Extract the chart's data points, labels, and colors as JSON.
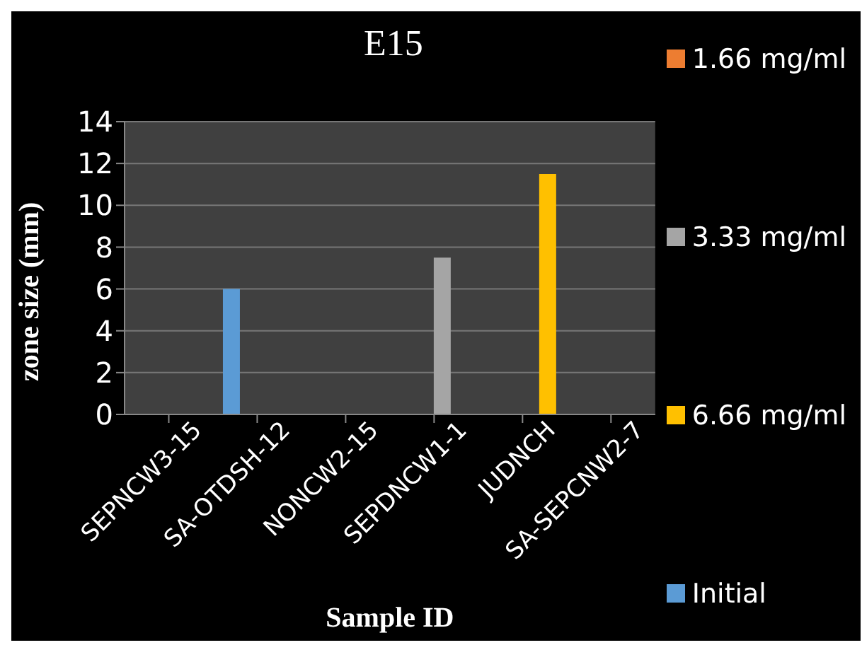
{
  "chart_data": {
    "type": "bar",
    "title": "E15",
    "xlabel": "Sample ID",
    "ylabel": "zone size (mm)",
    "categories": [
      "SEPNCW3-15",
      "SA-OTDSH-12",
      "NONCW2-15",
      "SEPDNCW1-1",
      "JUDNCH",
      "SA-SEPCNW2-7"
    ],
    "series": [
      {
        "name": "Initial",
        "color": "#5b9bd5",
        "values": [
          null,
          6,
          null,
          null,
          null,
          null
        ]
      },
      {
        "name": "1.66 mg/ml",
        "color": "#ed7d31",
        "values": [
          null,
          null,
          null,
          null,
          null,
          null
        ]
      },
      {
        "name": "3.33 mg/ml",
        "color": "#a5a5a5",
        "values": [
          null,
          null,
          null,
          7.5,
          null,
          null
        ]
      },
      {
        "name": "6.66 mg/ml",
        "color": "#ffc000",
        "values": [
          null,
          null,
          null,
          null,
          11.5,
          null
        ]
      }
    ],
    "ylim": [
      0,
      14
    ],
    "yticks": [
      0,
      2,
      4,
      6,
      8,
      10,
      12,
      14
    ],
    "grid": "y",
    "legend": "right"
  }
}
